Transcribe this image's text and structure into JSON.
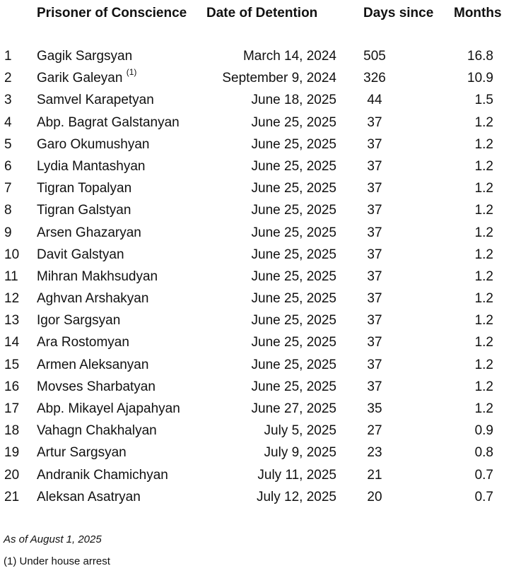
{
  "table": {
    "headers": {
      "name": "Prisoner of Conscience",
      "date": "Date of Detention",
      "days": "Days since",
      "months": "Months"
    },
    "rows": [
      {
        "num": "1",
        "name": "Gagik Sargsyan",
        "note": "",
        "date": "March 14, 2024",
        "days": "505",
        "months": "16.8"
      },
      {
        "num": "2",
        "name": "Garik Galeyan",
        "note": "(1)",
        "date": "September 9, 2024",
        "days": "326",
        "months": "10.9"
      },
      {
        "num": "3",
        "name": "Samvel Karapetyan",
        "note": "",
        "date": "June 18, 2025",
        "days": "44",
        "months": "1.5"
      },
      {
        "num": "4",
        "name": "Abp. Bagrat Galstanyan",
        "note": "",
        "date": "June 25, 2025",
        "days": "37",
        "months": "1.2"
      },
      {
        "num": "5",
        "name": "Garo Okumushyan",
        "note": "",
        "date": "June 25, 2025",
        "days": "37",
        "months": "1.2"
      },
      {
        "num": "6",
        "name": "Lydia Mantashyan",
        "note": "",
        "date": "June 25, 2025",
        "days": "37",
        "months": "1.2"
      },
      {
        "num": "7",
        "name": "Tigran Topalyan",
        "note": "",
        "date": "June 25, 2025",
        "days": "37",
        "months": "1.2"
      },
      {
        "num": "8",
        "name": "Tigran Galstyan",
        "note": "",
        "date": "June 25, 2025",
        "days": "37",
        "months": "1.2"
      },
      {
        "num": "9",
        "name": "Arsen Ghazaryan",
        "note": "",
        "date": "June 25, 2025",
        "days": "37",
        "months": "1.2"
      },
      {
        "num": "10",
        "name": "Davit Galstyan",
        "note": "",
        "date": "June 25, 2025",
        "days": "37",
        "months": "1.2"
      },
      {
        "num": "11",
        "name": "Mihran Makhsudyan",
        "note": "",
        "date": "June 25, 2025",
        "days": "37",
        "months": "1.2"
      },
      {
        "num": "12",
        "name": "Aghvan Arshakyan",
        "note": "",
        "date": "June 25, 2025",
        "days": "37",
        "months": "1.2"
      },
      {
        "num": "13",
        "name": "Igor Sargsyan",
        "note": "",
        "date": "June 25, 2025",
        "days": "37",
        "months": "1.2"
      },
      {
        "num": "14",
        "name": "Ara Rostomyan",
        "note": "",
        "date": "June 25, 2025",
        "days": "37",
        "months": "1.2"
      },
      {
        "num": "15",
        "name": "Armen Aleksanyan",
        "note": "",
        "date": "June 25, 2025",
        "days": "37",
        "months": "1.2"
      },
      {
        "num": "16",
        "name": "Movses Sharbatyan",
        "note": "",
        "date": "June 25, 2025",
        "days": "37",
        "months": "1.2"
      },
      {
        "num": "17",
        "name": "Abp. Mikayel Ajapahyan",
        "note": "",
        "date": "June 27, 2025",
        "days": "35",
        "months": "1.2"
      },
      {
        "num": "18",
        "name": "Vahagn Chakhalyan",
        "note": "",
        "date": "July 5, 2025",
        "days": "27",
        "months": "0.9"
      },
      {
        "num": "19",
        "name": "Artur Sargsyan",
        "note": "",
        "date": "July 9, 2025",
        "days": "23",
        "months": "0.8"
      },
      {
        "num": "20",
        "name": "Andranik Chamichyan",
        "note": "",
        "date": "July 11, 2025",
        "days": "21",
        "months": "0.7"
      },
      {
        "num": "21",
        "name": "Aleksan Asatryan",
        "note": "",
        "date": "July 12, 2025",
        "days": "20",
        "months": "0.7"
      }
    ]
  },
  "notes": {
    "as_of": "As of August 1, 2025",
    "footnote": "(1) Under house arrest"
  }
}
